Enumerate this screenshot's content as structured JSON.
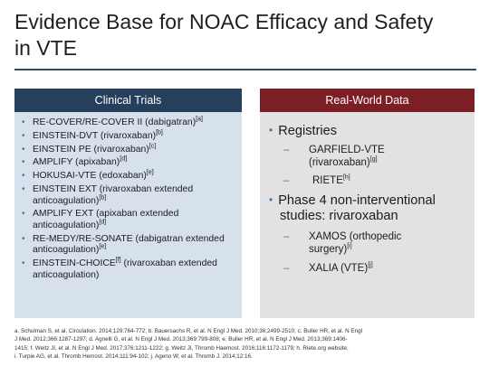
{
  "slide": {
    "title_line1": "Evidence Base for NOAC Efficacy and Safety",
    "title_line2": "in VTE"
  },
  "clinical_trials": {
    "header": "Clinical Trials",
    "items": [
      {
        "text": "RE-COVER/RE-COVER II (dabigatran)",
        "sup": "[a]"
      },
      {
        "text": "EINSTEIN-DVT (rivaroxaban)",
        "sup": "[b]"
      },
      {
        "text": "EINSTEIN PE (rivaroxaban)",
        "sup": "[c]"
      },
      {
        "text": "AMPLIFY (apixaban)",
        "sup": "[d]"
      },
      {
        "text": "HOKUSAI-VTE (edoxaban)",
        "sup": "[e]"
      },
      {
        "text": "EINSTEIN EXT (rivaroxaban extended anticoagulation)",
        "sup": "[b]"
      },
      {
        "text": "AMPLIFY EXT (apixaban extended anticoagulation)",
        "sup": "[d]"
      },
      {
        "text": "RE-MEDY/RE-SONATE (dabigatran extended anticoagulation)",
        "sup": "[e]"
      },
      {
        "text_before": "EINSTEIN-CHOICE",
        "sup": "[f]",
        "text_after": " (rivaroxaban extended anticoagulation)"
      }
    ]
  },
  "real_world": {
    "header": "Real-World Data",
    "registries_label": "Registries",
    "garfield_line1": "GARFIELD-VTE",
    "garfield_line2": "(rivaroxaban)",
    "garfield_sup": "[g]",
    "riete": "RIETE",
    "riete_sup": "[h]",
    "phase4_line1": "Phase 4 non-interventional",
    "phase4_line2": "studies: rivaroxaban",
    "xamos_line1": "XAMOS (orthopedic",
    "xamos_line2": "surgery)",
    "xamos_sup": "[i]",
    "xalia": "XALIA (VTE)",
    "xalia_sup": "[j]"
  },
  "references": {
    "line1": "a. Schulman S, et al. Circulation. 2014;129:764-772;  b. Bauersachs R, et al. N Engl J Med. 2010;36;2499-2510;  c. Buller HR, et al. N Engl",
    "line2": "J Med. 2012;366:1287-1297;  d. Agnelli G, et al. N Engl J Med. 2013;369:799-808;  e. Buller HR, et al. N Engl J Med. 2013;369:1406-",
    "line3": "1415;  f. Weitz JI, et al. N Engl J Med. 2017;376:1211-1222;  g. Weitz JI, Thromb Haemost. 2016;116:1172-1179;  h. Riete.org website;",
    "line4": "i. Turpie AG, et al. Thromb Hemost. 2014;111:94-102;  j. Ageno W, et al. Thromb J. 2014;12:16."
  },
  "colors": {
    "clinical_header": "#253f5c",
    "clinical_body": "#d7e1ec",
    "realworld_header": "#7b1f24",
    "realworld_body": "#e2e2e2",
    "bullet": "#3b77b0"
  }
}
